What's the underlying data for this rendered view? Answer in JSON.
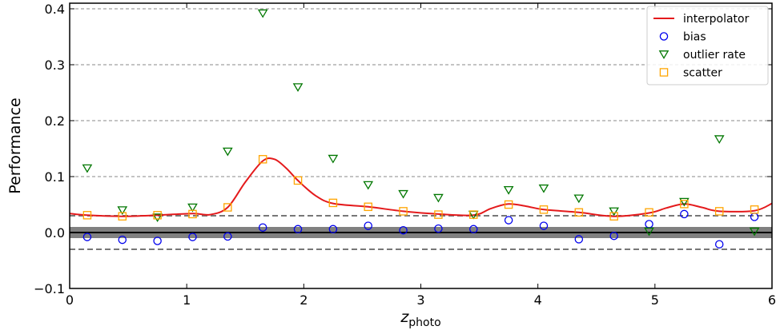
{
  "chart_data": {
    "type": "scatter",
    "xlabel": "z",
    "xlabel_sub": "photo",
    "ylabel": "Performance",
    "xlim": [
      0,
      6
    ],
    "ylim": [
      -0.1,
      0.41
    ],
    "x_ticks": [
      0,
      1,
      2,
      3,
      4,
      5,
      6
    ],
    "x_tick_labels": [
      "0",
      "1",
      "2",
      "3",
      "4",
      "5",
      "6"
    ],
    "y_ticks": [
      -0.1,
      0.0,
      0.1,
      0.2,
      0.3,
      0.4
    ],
    "y_tick_labels": [
      "−0.1",
      "0.0",
      "0.1",
      "0.2",
      "0.3",
      "0.4"
    ],
    "grid": "horizontal dashed at 0.1, 0.2, 0.3, 0.4",
    "legend_position": "top-right",
    "reference_lines": {
      "zero_line": 0.0,
      "band": [
        -0.01,
        0.01
      ],
      "dashed_thresholds": [
        0.03,
        -0.03
      ]
    },
    "series": [
      {
        "name": "interpolator",
        "kind": "line",
        "color": "#e41a1c",
        "x": [
          0.0,
          0.15,
          0.45,
          0.75,
          1.05,
          1.2,
          1.35,
          1.5,
          1.65,
          1.75,
          1.85,
          1.95,
          2.1,
          2.25,
          2.55,
          2.85,
          3.15,
          3.45,
          3.6,
          3.75,
          3.9,
          4.05,
          4.35,
          4.65,
          4.95,
          5.1,
          5.25,
          5.4,
          5.55,
          5.85,
          6.0
        ],
        "y": [
          0.034,
          0.031,
          0.029,
          0.031,
          0.034,
          0.032,
          0.045,
          0.09,
          0.128,
          0.131,
          0.115,
          0.093,
          0.066,
          0.052,
          0.046,
          0.038,
          0.033,
          0.031,
          0.043,
          0.051,
          0.047,
          0.041,
          0.036,
          0.029,
          0.035,
          0.044,
          0.051,
          0.045,
          0.038,
          0.039,
          0.052
        ]
      },
      {
        "name": "bias",
        "kind": "marker",
        "marker": "circle",
        "color": "#0000ee",
        "x": [
          0.15,
          0.45,
          0.75,
          1.05,
          1.35,
          1.65,
          1.95,
          2.25,
          2.55,
          2.85,
          3.15,
          3.45,
          3.75,
          4.05,
          4.35,
          4.65,
          4.95,
          5.25,
          5.55,
          5.85
        ],
        "y": [
          -0.008,
          -0.013,
          -0.015,
          -0.008,
          -0.007,
          0.009,
          0.006,
          0.006,
          0.012,
          0.004,
          0.007,
          0.006,
          0.022,
          0.012,
          -0.012,
          -0.006,
          0.015,
          0.033,
          -0.021,
          0.028
        ]
      },
      {
        "name": "outlier rate",
        "kind": "marker",
        "marker": "triangle-down",
        "color": "#007700",
        "x": [
          0.15,
          0.45,
          0.75,
          1.05,
          1.35,
          1.65,
          1.95,
          2.25,
          2.55,
          2.85,
          3.15,
          3.45,
          3.75,
          4.05,
          4.35,
          4.65,
          4.95,
          5.25,
          5.55,
          5.85
        ],
        "y": [
          0.115,
          0.04,
          0.027,
          0.045,
          0.145,
          0.392,
          0.26,
          0.132,
          0.085,
          0.069,
          0.062,
          0.032,
          0.076,
          0.079,
          0.061,
          0.038,
          0.002,
          0.055,
          0.167,
          0.002
        ]
      },
      {
        "name": "scatter",
        "kind": "marker",
        "marker": "square",
        "color": "#ffa500",
        "x": [
          0.15,
          0.45,
          0.75,
          1.05,
          1.35,
          1.65,
          1.95,
          2.25,
          2.55,
          2.85,
          3.15,
          3.45,
          3.75,
          4.05,
          4.35,
          4.65,
          4.95,
          5.25,
          5.55,
          5.85
        ],
        "y": [
          0.031,
          0.029,
          0.031,
          0.033,
          0.045,
          0.131,
          0.093,
          0.053,
          0.046,
          0.038,
          0.032,
          0.032,
          0.05,
          0.041,
          0.036,
          0.029,
          0.036,
          0.051,
          0.038,
          0.041
        ]
      }
    ]
  }
}
